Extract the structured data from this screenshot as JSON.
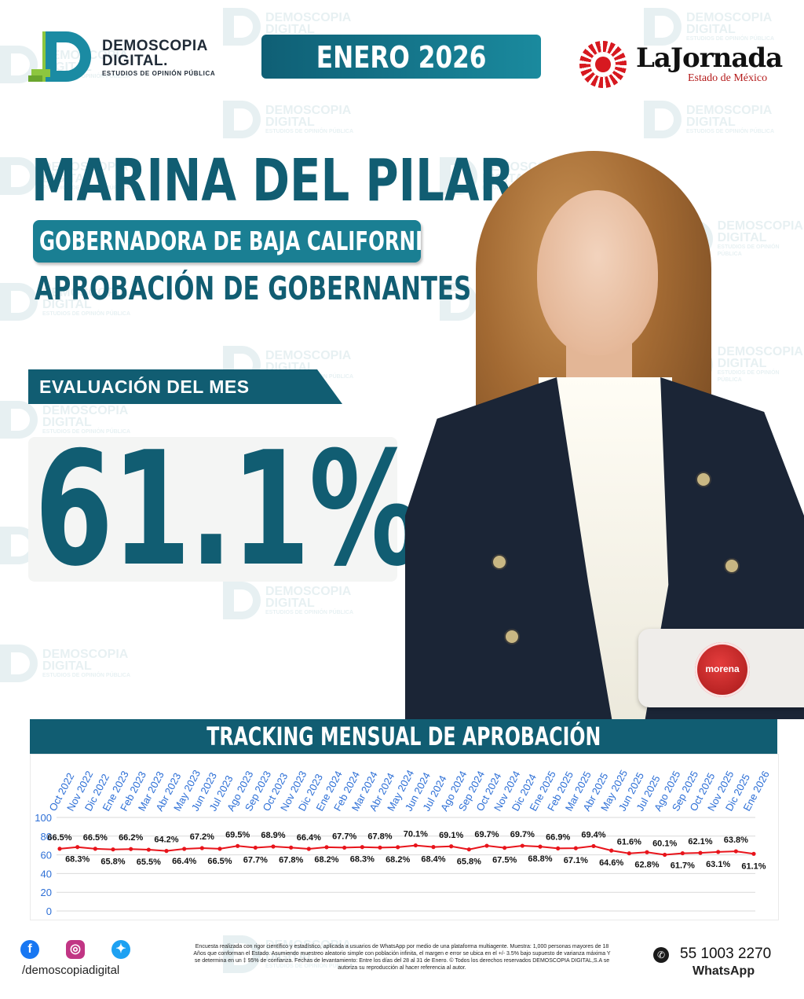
{
  "header": {
    "logo_line1": "DEMOSCOPIA",
    "logo_line2": "DIGITAL.",
    "logo_line3": "ESTUDIOS DE OPINIÓN PÚBLICA",
    "month": "ENERO 2026",
    "partner_name": "LaJornada",
    "partner_sub": "Estado de México"
  },
  "watermark": {
    "line1": "DEMOSCOPIA",
    "line2": "DIGITAL",
    "line3": "ESTUDIOS DE OPINIÓN PÚBLICA"
  },
  "subject": {
    "name": "MARINA DEL PILAR",
    "office": "GOBERNADORA DE BAJA CALIFORNIA",
    "subtitle": "APROBACIÓN DE GOBERNANTES",
    "party": "morena",
    "photo_icon": "portrait-photo"
  },
  "evaluation": {
    "label": "EVALUACIÓN DEL MES",
    "value": "61.1%"
  },
  "tracking": {
    "title": "TRACKING MENSUAL DE APROBACIÓN"
  },
  "chart_data": {
    "type": "line",
    "categories": [
      "Oct 2022",
      "Nov 2022",
      "Dic 2022",
      "Ene 2023",
      "Feb 2023",
      "Mar 2023",
      "Abr 2023",
      "May 2023",
      "Jun 2023",
      "Jul 2023",
      "Ago 2023",
      "Sep 2023",
      "Oct 2023",
      "Nov 2023",
      "Dic 2023",
      "Ene 2024",
      "Feb 2024",
      "Mar 2024",
      "Abr 2024",
      "May 2024",
      "Jun 2024",
      "Jul 2024",
      "Ago 2024",
      "Sep 2024",
      "Oct 2024",
      "Nov 2024",
      "Dic 2024",
      "Ene 2025",
      "Feb 2025",
      "Mar 2025",
      "Abr 2025",
      "May 2025",
      "Jun 2025",
      "Jul 2025",
      "Ago 2025",
      "Sep 2025",
      "Oct 2025",
      "Nov 2025",
      "Dic 2025",
      "Ene 2026"
    ],
    "values": [
      66.5,
      68.3,
      66.5,
      65.8,
      66.2,
      65.5,
      64.2,
      66.4,
      67.2,
      66.5,
      69.5,
      67.7,
      68.9,
      67.8,
      66.4,
      68.2,
      67.7,
      68.3,
      67.8,
      68.2,
      70.1,
      68.4,
      69.1,
      65.8,
      69.7,
      67.5,
      69.7,
      68.8,
      66.9,
      67.1,
      69.4,
      64.6,
      61.6,
      62.8,
      60.1,
      61.7,
      62.1,
      63.1,
      63.8,
      61.1
    ],
    "labels": [
      "66.5%",
      "68.3%",
      "66.5%",
      "65.8%",
      "66.2%",
      "65.5%",
      "64.2%",
      "66.4%",
      "67.2%",
      "66.5%",
      "69.5%",
      "67.7%",
      "68.9%",
      "67.8%",
      "66.4%",
      "68.2%",
      "67.7%",
      "68.3%",
      "67.8%",
      "68.2%",
      "70.1%",
      "68.4%",
      "69.1%",
      "65.8%",
      "69.7%",
      "67.5%",
      "69.7%",
      "68.8%",
      "66.9%",
      "67.1%",
      "69.4%",
      "64.6%",
      "61.6%",
      "62.8%",
      "60.1%",
      "61.7%",
      "62.1%",
      "63.1%",
      "63.8%",
      "61.1%"
    ],
    "yticks": [
      0,
      20,
      40,
      60,
      80,
      100
    ],
    "ylim": [
      0,
      100
    ],
    "grid": true,
    "line_color": "#e8141b",
    "category_color": "#2d6fd6"
  },
  "footer": {
    "handle": "/demoscopiadigital",
    "disclaimer": "Encuesta realizada con rigor científico y estadístico, aplicada a usuarios de WhatsApp por medio de una plataforma multiagente. Muestra: 1,000 personas mayores de 18 Años que conforman el Estado. Asumiendo muestreo aleatorio simple con población infinita, el margen e error se ubica en el +/- 3.5% bajo supuesto de varianza máxima Y se determina en un ‡ 95% de confianza. Fechas de levantamiento: Entre los días del 28 al 31 de Enero. © Todos los derechos reservados DEMOSCOPIA DIGITAL,S.A se autoriza su reproducción al hacer referencia al autor.",
    "phone": "55 1003 2270",
    "whatsapp_label": "WhatsApp",
    "social_icons": [
      "facebook-icon",
      "instagram-icon",
      "twitter-icon"
    ]
  },
  "colors": {
    "primary": "#115d72",
    "accent": "#1a7f93",
    "brand_green": "#8dc63f",
    "partner_red": "#d71920"
  }
}
